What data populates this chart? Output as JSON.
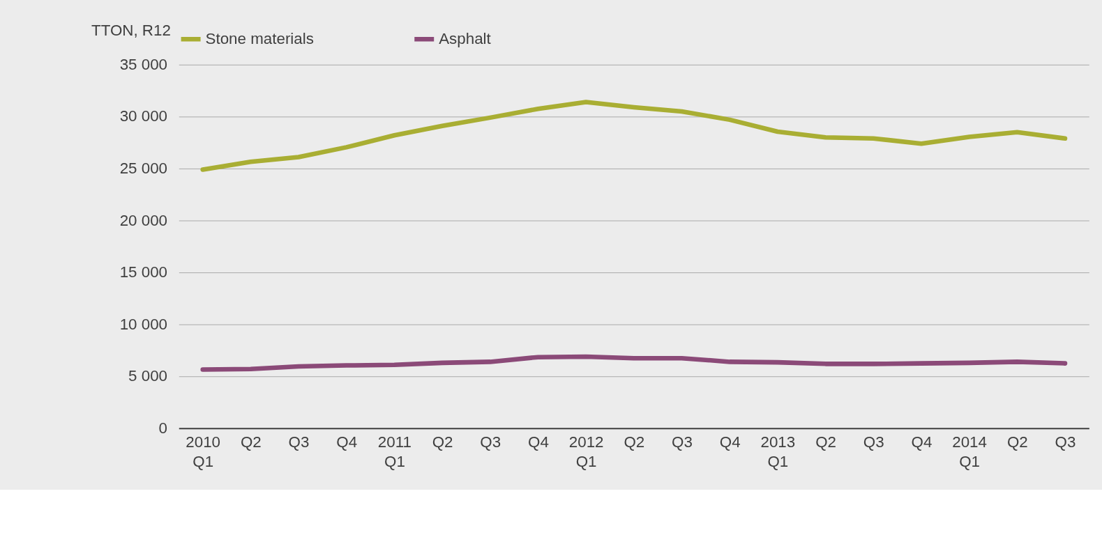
{
  "chart_data": {
    "type": "line",
    "ylabel": "TTON, R12",
    "categories": [
      "2010\nQ1",
      "Q2",
      "Q3",
      "Q4",
      "2011\nQ1",
      "Q2",
      "Q3",
      "Q4",
      "2012\nQ1",
      "Q2",
      "Q3",
      "Q4",
      "2013\nQ1",
      "Q2",
      "Q3",
      "Q4",
      "2014\nQ1",
      "Q2",
      "Q3"
    ],
    "series": [
      {
        "name": "Stone materials",
        "color": "#a9ae33",
        "values": [
          24900,
          25650,
          26100,
          27050,
          28200,
          29100,
          29900,
          30750,
          31400,
          30900,
          30500,
          29700,
          28550,
          28000,
          27900,
          27400,
          28050,
          28500,
          27900
        ]
      },
      {
        "name": "Asphalt",
        "color": "#8b4a78",
        "values": [
          5650,
          5700,
          5950,
          6050,
          6100,
          6300,
          6400,
          6850,
          6900,
          6750,
          6750,
          6400,
          6350,
          6200,
          6200,
          6250,
          6300,
          6400,
          6250
        ]
      }
    ],
    "ylim": [
      0,
      35000
    ],
    "yticks": [
      0,
      {
        "value": 5000,
        "label": "5 000"
      },
      {
        "value": 10000,
        "label": "10 000"
      },
      {
        "value": 15000,
        "label": "15 000"
      },
      {
        "value": 20000,
        "label": "20 000"
      },
      {
        "value": 25000,
        "label": "25 000"
      },
      {
        "value": 30000,
        "label": "30 000"
      },
      {
        "value": 35000,
        "label": "35 000"
      }
    ],
    "grid": "y",
    "legend": "top",
    "marker": "none",
    "line_style": "solid"
  }
}
